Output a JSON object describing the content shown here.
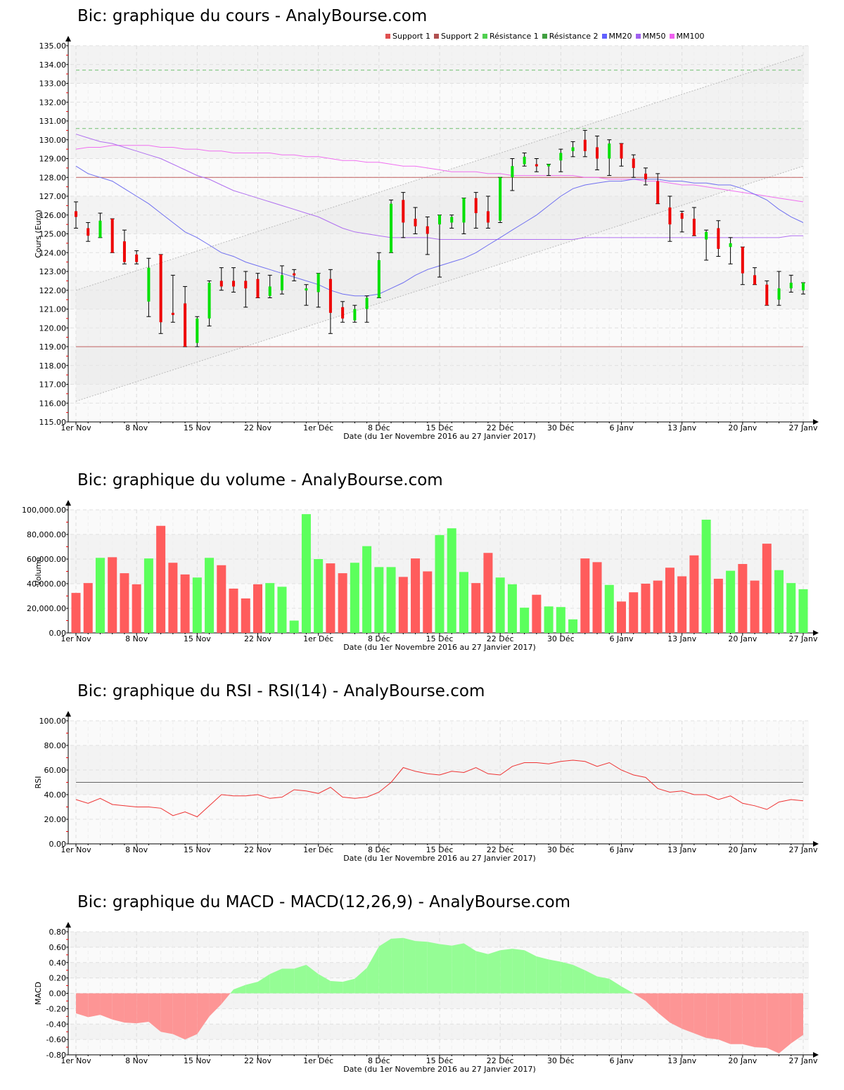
{
  "titles": {
    "price": "Bic: graphique du cours - AnalyBourse.com",
    "volume": "Bic: graphique du volume - AnalyBourse.com",
    "rsi": "Bic: graphique du RSI - RSI(14) - AnalyBourse.com",
    "macd": "Bic: graphique du MACD - MACD(12,26,9) - AnalyBourse.com"
  },
  "legend": [
    {
      "label": "Support 1",
      "color": "#e05050"
    },
    {
      "label": "Support 2",
      "color": "#b05050"
    },
    {
      "label": "Résistance 1",
      "color": "#50d050"
    },
    {
      "label": "Résistance 2",
      "color": "#40a040"
    },
    {
      "label": "MM20",
      "color": "#6060ff"
    },
    {
      "label": "MM50",
      "color": "#a060f0"
    },
    {
      "label": "MM100",
      "color": "#f060f0"
    }
  ],
  "xlabel": "Date (du 1er Novembre 2016 au 27 Janvier 2017)",
  "colors": {
    "up": "#00e000",
    "down": "#ee0000",
    "vol_up": "#5cff5c",
    "vol_down": "#ff5c5c",
    "rsi": "#ee3333",
    "macd_pos": "#95fd95",
    "macd_neg": "#fd9595",
    "support": "#c06060",
    "resistance": "#70c070",
    "mm20": "#7070f0",
    "mm50": "#b070f0",
    "mm100": "#f070f0"
  },
  "chart_data": [
    {
      "type": "candlestick",
      "title": "Bic: graphique du cours - AnalyBourse.com",
      "xlabel": "Date (du 1er Novembre 2016 au 27 Janvier 2017)",
      "ylabel": "Cours (Euro)",
      "ylim": [
        115,
        135
      ],
      "yticks": [
        115,
        116,
        117,
        118,
        119,
        120,
        121,
        122,
        123,
        124,
        125,
        126,
        127,
        128,
        129,
        130,
        131,
        132,
        133,
        134,
        135
      ],
      "xticks": [
        "1er Nov",
        "8 Nov",
        "15 Nov",
        "22 Nov",
        "1er Déc",
        "8 Déc",
        "15 Déc",
        "22 Déc",
        "30 Déc",
        "6 Janv",
        "13 Janv",
        "20 Janv",
        "27 Janv"
      ],
      "xtick_index": [
        0,
        5,
        10,
        15,
        20,
        25,
        30,
        35,
        40,
        45,
        50,
        55,
        60
      ],
      "legend": [
        "Support 1",
        "Support 2",
        "Résistance 1",
        "Résistance 2",
        "MM20",
        "MM50",
        "MM100"
      ],
      "levels": {
        "support_1": 128.0,
        "support_2": 119.0,
        "resistance_1": 130.6,
        "resistance_2": 133.7
      },
      "channel": {
        "upper": [
          [
            0,
            122.0
          ],
          [
            60,
            134.5
          ]
        ],
        "lower": [
          [
            0,
            116.1
          ],
          [
            60,
            128.6
          ]
        ]
      },
      "candles": [
        {
          "o": 126.2,
          "h": 126.7,
          "l": 125.3,
          "c": 125.9
        },
        {
          "o": 125.3,
          "h": 125.6,
          "l": 124.6,
          "c": 124.9
        },
        {
          "o": 124.8,
          "h": 126.1,
          "l": 124.8,
          "c": 125.7
        },
        {
          "o": 125.8,
          "h": 125.8,
          "l": 124.0,
          "c": 124.0
        },
        {
          "o": 124.6,
          "h": 125.2,
          "l": 123.4,
          "c": 123.5
        },
        {
          "o": 123.9,
          "h": 124.1,
          "l": 123.4,
          "c": 123.5
        },
        {
          "o": 121.4,
          "h": 123.7,
          "l": 120.6,
          "c": 123.2
        },
        {
          "o": 123.9,
          "h": 123.9,
          "l": 119.7,
          "c": 120.3
        },
        {
          "o": 120.8,
          "h": 122.8,
          "l": 120.3,
          "c": 120.7
        },
        {
          "o": 121.3,
          "h": 122.2,
          "l": 119.0,
          "c": 119.0
        },
        {
          "o": 119.2,
          "h": 120.6,
          "l": 119.0,
          "c": 120.5
        },
        {
          "o": 120.5,
          "h": 122.5,
          "l": 120.1,
          "c": 122.4
        },
        {
          "o": 122.5,
          "h": 123.2,
          "l": 122.0,
          "c": 122.2
        },
        {
          "o": 122.5,
          "h": 123.2,
          "l": 121.9,
          "c": 122.2
        },
        {
          "o": 122.5,
          "h": 123.0,
          "l": 121.1,
          "c": 122.1
        },
        {
          "o": 122.6,
          "h": 122.9,
          "l": 121.6,
          "c": 121.6
        },
        {
          "o": 121.7,
          "h": 122.8,
          "l": 121.6,
          "c": 122.2
        },
        {
          "o": 122.0,
          "h": 123.3,
          "l": 121.8,
          "c": 122.8
        },
        {
          "o": 122.9,
          "h": 123.1,
          "l": 122.5,
          "c": 122.8
        },
        {
          "o": 122.0,
          "h": 122.3,
          "l": 121.2,
          "c": 122.1
        },
        {
          "o": 121.9,
          "h": 122.9,
          "l": 121.1,
          "c": 122.9
        },
        {
          "o": 122.6,
          "h": 123.1,
          "l": 119.7,
          "c": 120.8
        },
        {
          "o": 121.1,
          "h": 121.4,
          "l": 120.3,
          "c": 120.5
        },
        {
          "o": 120.4,
          "h": 121.2,
          "l": 120.3,
          "c": 121.0
        },
        {
          "o": 121.0,
          "h": 121.7,
          "l": 120.3,
          "c": 121.6
        },
        {
          "o": 121.6,
          "h": 124.0,
          "l": 121.6,
          "c": 123.6
        },
        {
          "o": 124.0,
          "h": 126.8,
          "l": 124.0,
          "c": 126.6
        },
        {
          "o": 126.8,
          "h": 127.2,
          "l": 124.8,
          "c": 125.6
        },
        {
          "o": 125.8,
          "h": 126.4,
          "l": 125.0,
          "c": 125.4
        },
        {
          "o": 125.4,
          "h": 125.9,
          "l": 123.9,
          "c": 125.0
        },
        {
          "o": 125.5,
          "h": 126.0,
          "l": 122.7,
          "c": 126.0
        },
        {
          "o": 125.6,
          "h": 126.0,
          "l": 125.3,
          "c": 125.9
        },
        {
          "o": 125.6,
          "h": 126.9,
          "l": 125.0,
          "c": 126.9
        },
        {
          "o": 126.9,
          "h": 127.2,
          "l": 125.3,
          "c": 126.1
        },
        {
          "o": 126.2,
          "h": 127.0,
          "l": 125.3,
          "c": 125.6
        },
        {
          "o": 125.7,
          "h": 128.0,
          "l": 125.6,
          "c": 128.0
        },
        {
          "o": 128.0,
          "h": 129.0,
          "l": 127.3,
          "c": 128.6
        },
        {
          "o": 128.7,
          "h": 129.3,
          "l": 128.6,
          "c": 129.1
        },
        {
          "o": 128.7,
          "h": 129.0,
          "l": 128.3,
          "c": 128.6
        },
        {
          "o": 128.7,
          "h": 128.7,
          "l": 128.1,
          "c": 128.7
        },
        {
          "o": 128.9,
          "h": 129.5,
          "l": 128.3,
          "c": 129.3
        },
        {
          "o": 129.4,
          "h": 129.9,
          "l": 129.1,
          "c": 129.6
        },
        {
          "o": 130.0,
          "h": 130.5,
          "l": 129.1,
          "c": 129.4
        },
        {
          "o": 129.6,
          "h": 130.2,
          "l": 128.4,
          "c": 129.0
        },
        {
          "o": 129.0,
          "h": 130.0,
          "l": 128.1,
          "c": 129.8
        },
        {
          "o": 129.8,
          "h": 129.8,
          "l": 128.6,
          "c": 129.0
        },
        {
          "o": 129.0,
          "h": 129.2,
          "l": 128.0,
          "c": 128.5
        },
        {
          "o": 128.2,
          "h": 128.5,
          "l": 127.6,
          "c": 127.9
        },
        {
          "o": 127.8,
          "h": 128.2,
          "l": 126.6,
          "c": 126.6
        },
        {
          "o": 126.4,
          "h": 127.0,
          "l": 124.6,
          "c": 125.5
        },
        {
          "o": 126.1,
          "h": 126.2,
          "l": 125.1,
          "c": 125.8
        },
        {
          "o": 125.8,
          "h": 126.4,
          "l": 124.9,
          "c": 124.9
        },
        {
          "o": 124.7,
          "h": 125.2,
          "l": 123.6,
          "c": 125.1
        },
        {
          "o": 125.3,
          "h": 125.7,
          "l": 123.8,
          "c": 124.2
        },
        {
          "o": 124.3,
          "h": 124.8,
          "l": 123.4,
          "c": 124.5
        },
        {
          "o": 124.3,
          "h": 124.3,
          "l": 122.3,
          "c": 122.9
        },
        {
          "o": 122.8,
          "h": 123.2,
          "l": 122.3,
          "c": 122.3
        },
        {
          "o": 122.3,
          "h": 122.5,
          "l": 121.2,
          "c": 121.2
        },
        {
          "o": 121.5,
          "h": 123.0,
          "l": 121.2,
          "c": 122.1
        },
        {
          "o": 122.1,
          "h": 122.8,
          "l": 121.9,
          "c": 122.4
        },
        {
          "o": 122.0,
          "h": 122.4,
          "l": 121.8,
          "c": 122.4
        }
      ],
      "mm20": [
        128.6,
        128.2,
        128.0,
        127.8,
        127.4,
        127.0,
        126.6,
        126.1,
        125.6,
        125.1,
        124.8,
        124.4,
        124.0,
        123.8,
        123.5,
        123.3,
        123.1,
        122.9,
        122.7,
        122.5,
        122.3,
        122.0,
        121.8,
        121.7,
        121.7,
        121.8,
        122.1,
        122.4,
        122.8,
        123.1,
        123.3,
        123.5,
        123.7,
        124.0,
        124.4,
        124.8,
        125.2,
        125.6,
        126.0,
        126.5,
        127.0,
        127.4,
        127.6,
        127.7,
        127.8,
        127.8,
        127.9,
        127.9,
        127.9,
        127.8,
        127.8,
        127.7,
        127.7,
        127.6,
        127.6,
        127.4,
        127.1,
        126.8,
        126.3,
        125.9,
        125.6
      ],
      "mm50": [
        130.3,
        130.1,
        129.9,
        129.8,
        129.6,
        129.4,
        129.2,
        129.0,
        128.7,
        128.4,
        128.1,
        127.9,
        127.6,
        127.3,
        127.1,
        126.9,
        126.7,
        126.5,
        126.3,
        126.1,
        125.9,
        125.6,
        125.3,
        125.1,
        125.0,
        124.9,
        124.8,
        124.8,
        124.8,
        124.8,
        124.7,
        124.7,
        124.7,
        124.7,
        124.7,
        124.7,
        124.7,
        124.7,
        124.7,
        124.7,
        124.7,
        124.7,
        124.8,
        124.8,
        124.8,
        124.8,
        124.8,
        124.8,
        124.8,
        124.8,
        124.8,
        124.8,
        124.8,
        124.8,
        124.8,
        124.8,
        124.8,
        124.8,
        124.8,
        124.9,
        124.9
      ],
      "mm100": [
        129.5,
        129.6,
        129.6,
        129.7,
        129.7,
        129.7,
        129.7,
        129.6,
        129.6,
        129.5,
        129.5,
        129.4,
        129.4,
        129.3,
        129.3,
        129.3,
        129.3,
        129.2,
        129.2,
        129.1,
        129.1,
        129.0,
        128.9,
        128.9,
        128.8,
        128.8,
        128.7,
        128.6,
        128.6,
        128.5,
        128.4,
        128.3,
        128.3,
        128.3,
        128.2,
        128.2,
        128.1,
        128.1,
        128.1,
        128.1,
        128.1,
        128.1,
        128.0,
        128.0,
        127.9,
        127.9,
        127.9,
        127.8,
        127.8,
        127.7,
        127.6,
        127.6,
        127.5,
        127.4,
        127.3,
        127.2,
        127.1,
        127.0,
        126.9,
        126.8,
        126.7
      ]
    },
    {
      "type": "bar",
      "title": "Bic: graphique du volume - AnalyBourse.com",
      "xlabel": "Date (du 1er Novembre 2016 au 27 Janvier 2017)",
      "ylabel": "Volume",
      "ylim": [
        0,
        100000
      ],
      "yticks": [
        "0.00",
        "20,000.00",
        "40,000.00",
        "60,000.00",
        "80,000.00",
        "100,000.00"
      ],
      "xticks": [
        "1er Nov",
        "8 Nov",
        "15 Nov",
        "22 Nov",
        "1er Déc",
        "8 Déc",
        "15 Déc",
        "22 Déc",
        "30 Déc",
        "6 Janv",
        "13 Janv",
        "20 Janv",
        "27 Janv"
      ],
      "values": [
        32500,
        40500,
        61000,
        61500,
        48500,
        39500,
        60500,
        87000,
        57000,
        47500,
        45000,
        61000,
        55000,
        36000,
        28000,
        39500,
        40500,
        37500,
        10000,
        96500,
        60000,
        56500,
        48500,
        57000,
        70500,
        53500,
        53500,
        45500,
        60500,
        50000,
        79500,
        85000,
        49500,
        40500,
        65000,
        45000,
        39500,
        20500,
        31000,
        21500,
        21000,
        11000,
        60500,
        57500,
        39000,
        25500,
        33000,
        40000,
        42500,
        53000,
        46000,
        63000,
        92000,
        44000,
        50500,
        56000,
        42500,
        72500,
        51000,
        40500,
        35500
      ],
      "colors": [
        "down",
        "down",
        "up",
        "down",
        "down",
        "down",
        "up",
        "down",
        "down",
        "down",
        "up",
        "up",
        "down",
        "down",
        "down",
        "down",
        "up",
        "up",
        "up",
        "up",
        "up",
        "down",
        "down",
        "up",
        "up",
        "up",
        "up",
        "down",
        "down",
        "down",
        "up",
        "up",
        "up",
        "down",
        "down",
        "up",
        "up",
        "up",
        "down",
        "up",
        "up",
        "up",
        "down",
        "down",
        "up",
        "down",
        "down",
        "down",
        "down",
        "down",
        "down",
        "down",
        "up",
        "down",
        "up",
        "down",
        "down",
        "down",
        "up",
        "up",
        "up"
      ]
    },
    {
      "type": "line",
      "title": "Bic: graphique du RSI - RSI(14) - AnalyBourse.com",
      "xlabel": "Date (du 1er Novembre 2016 au 27 Janvier 2017)",
      "ylabel": "RSI",
      "ylim": [
        0,
        100
      ],
      "yticks": [
        "0.00",
        "20.00",
        "40.00",
        "60.00",
        "80.00",
        "100.00"
      ],
      "reference_line": 50,
      "xticks": [
        "1er Nov",
        "8 Nov",
        "15 Nov",
        "22 Nov",
        "1er Déc",
        "8 Déc",
        "15 Déc",
        "22 Déc",
        "30 Déc",
        "6 Janv",
        "13 Janv",
        "20 Janv",
        "27 Janv"
      ],
      "values": [
        36,
        33,
        37,
        32,
        31,
        30,
        30,
        29,
        23,
        26,
        22,
        31,
        40,
        39,
        39,
        40,
        37,
        38,
        44,
        43,
        41,
        46,
        38,
        37,
        38,
        42,
        50,
        62,
        59,
        57,
        56,
        59,
        58,
        62,
        57,
        56,
        63,
        66,
        66,
        65,
        67,
        68,
        67,
        63,
        66,
        60,
        56,
        54,
        45,
        42,
        43,
        40,
        40,
        36,
        39,
        33,
        31,
        28,
        34,
        36,
        35
      ],
      "values_x": [
        0,
        1,
        2,
        3,
        4,
        5,
        6,
        7,
        8,
        9,
        10,
        11,
        12,
        13,
        14,
        15,
        16,
        17,
        18,
        19,
        20,
        21,
        22,
        23,
        24,
        25,
        26,
        27,
        28,
        29,
        30,
        31,
        32,
        33,
        34,
        35,
        36,
        37,
        38,
        39,
        40,
        41,
        42,
        43,
        44,
        45,
        46,
        47,
        48,
        49,
        50,
        51,
        52,
        53,
        54,
        55,
        56,
        57,
        58,
        59,
        60
      ]
    },
    {
      "type": "area",
      "title": "Bic: graphique du MACD - MACD(12,26,9) - AnalyBourse.com",
      "xlabel": "Date (du 1er Novembre 2016 au 27 Janvier 2017)",
      "ylabel": "MACD",
      "ylim": [
        -0.8,
        0.8
      ],
      "yticks": [
        "-0.80",
        "-0.60",
        "-0.40",
        "-0.20",
        "0.00",
        "0.20",
        "0.40",
        "0.60",
        "0.80"
      ],
      "xticks": [
        "1er Nov",
        "8 Nov",
        "15 Nov",
        "22 Nov",
        "1er Déc",
        "8 Déc",
        "15 Déc",
        "22 Déc",
        "30 Déc",
        "6 Janv",
        "13 Janv",
        "20 Janv",
        "27 Janv"
      ],
      "values": [
        -0.26,
        -0.31,
        -0.28,
        -0.34,
        -0.38,
        -0.39,
        -0.37,
        -0.5,
        -0.53,
        -0.6,
        -0.53,
        -0.3,
        -0.14,
        0.05,
        0.11,
        0.15,
        0.25,
        0.32,
        0.32,
        0.37,
        0.25,
        0.16,
        0.15,
        0.19,
        0.33,
        0.61,
        0.71,
        0.72,
        0.68,
        0.67,
        0.64,
        0.62,
        0.65,
        0.55,
        0.51,
        0.56,
        0.58,
        0.56,
        0.48,
        0.44,
        0.41,
        0.37,
        0.3,
        0.22,
        0.19,
        0.09,
        0.0,
        -0.1,
        -0.25,
        -0.38,
        -0.46,
        -0.52,
        -0.58,
        -0.6,
        -0.66,
        -0.66,
        -0.7,
        -0.71,
        -0.78,
        -0.65,
        -0.54
      ]
    }
  ]
}
